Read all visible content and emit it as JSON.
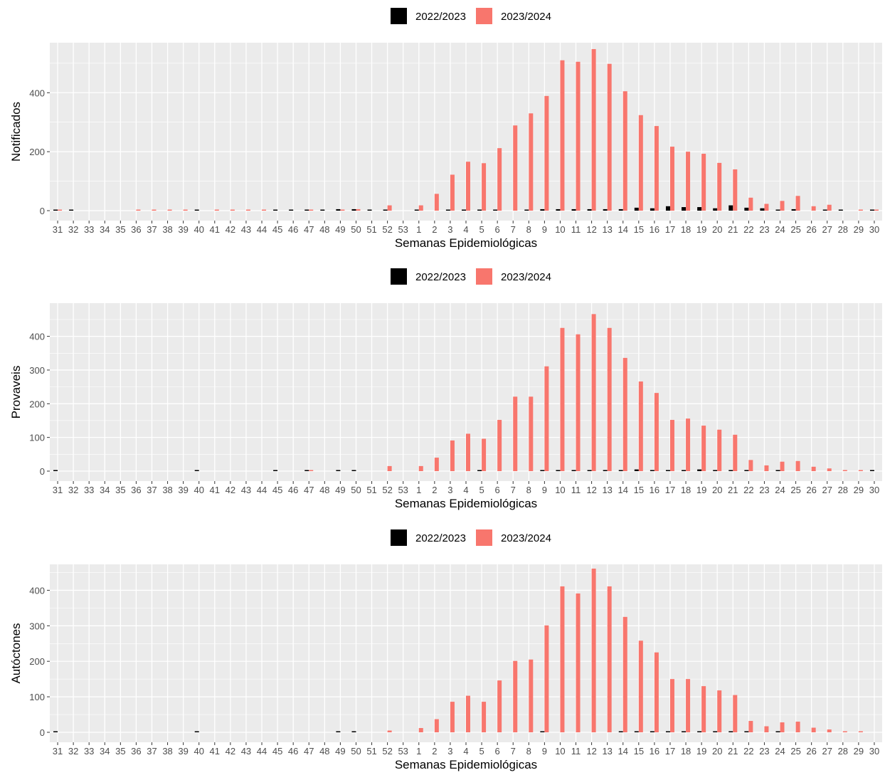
{
  "colors": {
    "s2022": "#000000",
    "s2023": "#F8766D",
    "panel": "#EBEBEB",
    "grid": "#FFFFFF",
    "tick": "#4D4D4D",
    "text": "#000000"
  },
  "chart_data": [
    {
      "type": "bar",
      "ylabel": "Notificados",
      "xlabel": "Semanas Epidemiológicas",
      "legend_position": "top",
      "grid": true,
      "ylim": [
        0,
        560
      ],
      "yticks": [
        0,
        200,
        400
      ],
      "categories": [
        "31",
        "32",
        "33",
        "34",
        "35",
        "36",
        "37",
        "38",
        "39",
        "40",
        "41",
        "42",
        "43",
        "44",
        "45",
        "46",
        "47",
        "48",
        "49",
        "50",
        "51",
        "52",
        "53",
        "1",
        "2",
        "3",
        "4",
        "5",
        "6",
        "7",
        "8",
        "9",
        "10",
        "11",
        "12",
        "13",
        "14",
        "15",
        "16",
        "17",
        "18",
        "19",
        "20",
        "21",
        "22",
        "23",
        "24",
        "25",
        "26",
        "27",
        "28",
        "29",
        "30"
      ],
      "series": [
        {
          "name": "2022/2023",
          "values": [
            3,
            2,
            0,
            0,
            0,
            0,
            0,
            0,
            0,
            2,
            0,
            0,
            0,
            0,
            2,
            2,
            2,
            2,
            5,
            5,
            2,
            2,
            0,
            2,
            0,
            2,
            3,
            2,
            2,
            0,
            2,
            5,
            5,
            5,
            5,
            5,
            5,
            10,
            8,
            15,
            12,
            12,
            8,
            18,
            10,
            8,
            3,
            5,
            0,
            2,
            3,
            0,
            2
          ]
        },
        {
          "name": "2023/2024",
          "values": [
            2,
            0,
            0,
            0,
            0,
            2,
            3,
            3,
            3,
            0,
            2,
            2,
            3,
            3,
            0,
            0,
            3,
            0,
            3,
            5,
            0,
            18,
            0,
            18,
            57,
            122,
            166,
            161,
            212,
            289,
            330,
            389,
            510,
            505,
            548,
            498,
            405,
            324,
            287,
            217,
            200,
            193,
            162,
            140,
            44,
            23,
            33,
            50,
            15,
            20,
            0,
            2,
            2
          ]
        }
      ]
    },
    {
      "type": "bar",
      "ylabel": "Provaveis",
      "xlabel": "Semanas Epidemiológicas",
      "legend_position": "top",
      "grid": true,
      "ylim": [
        0,
        490
      ],
      "yticks": [
        0,
        100,
        200,
        300,
        400
      ],
      "categories": [
        "31",
        "32",
        "33",
        "34",
        "35",
        "36",
        "37",
        "38",
        "39",
        "40",
        "41",
        "42",
        "43",
        "44",
        "45",
        "46",
        "47",
        "48",
        "49",
        "50",
        "51",
        "52",
        "53",
        "1",
        "2",
        "3",
        "4",
        "5",
        "6",
        "7",
        "8",
        "9",
        "10",
        "11",
        "12",
        "13",
        "14",
        "15",
        "16",
        "17",
        "18",
        "19",
        "20",
        "21",
        "22",
        "23",
        "24",
        "25",
        "26",
        "27",
        "28",
        "29",
        "30"
      ],
      "series": [
        {
          "name": "2022/2023",
          "values": [
            2,
            0,
            0,
            0,
            0,
            0,
            0,
            0,
            0,
            2,
            0,
            0,
            0,
            0,
            2,
            0,
            2,
            0,
            2,
            2,
            0,
            0,
            0,
            0,
            0,
            0,
            0,
            2,
            0,
            0,
            0,
            2,
            2,
            2,
            2,
            3,
            2,
            5,
            3,
            3,
            3,
            5,
            3,
            3,
            3,
            0,
            2,
            0,
            0,
            0,
            0,
            0,
            2
          ]
        },
        {
          "name": "2023/2024",
          "values": [
            0,
            0,
            0,
            0,
            0,
            0,
            0,
            0,
            0,
            0,
            0,
            0,
            0,
            0,
            0,
            0,
            2,
            0,
            0,
            0,
            0,
            15,
            0,
            15,
            40,
            91,
            111,
            96,
            152,
            221,
            221,
            311,
            425,
            406,
            466,
            425,
            336,
            266,
            232,
            152,
            156,
            135,
            123,
            108,
            33,
            17,
            28,
            30,
            13,
            8,
            3,
            3,
            0
          ]
        }
      ]
    },
    {
      "type": "bar",
      "ylabel": "Autóctones",
      "xlabel": "Semanas Epidemiológicas",
      "legend_position": "top",
      "grid": true,
      "ylim": [
        0,
        465
      ],
      "yticks": [
        0,
        100,
        200,
        300,
        400
      ],
      "categories": [
        "31",
        "32",
        "33",
        "34",
        "35",
        "36",
        "37",
        "38",
        "39",
        "40",
        "41",
        "42",
        "43",
        "44",
        "45",
        "46",
        "47",
        "48",
        "49",
        "50",
        "51",
        "52",
        "53",
        "1",
        "2",
        "3",
        "4",
        "5",
        "6",
        "7",
        "8",
        "9",
        "10",
        "11",
        "12",
        "13",
        "14",
        "15",
        "16",
        "17",
        "18",
        "19",
        "20",
        "21",
        "22",
        "23",
        "24",
        "25",
        "26",
        "27",
        "28",
        "29",
        "30"
      ],
      "series": [
        {
          "name": "2022/2023",
          "values": [
            2,
            0,
            0,
            0,
            0,
            0,
            0,
            0,
            0,
            2,
            0,
            0,
            0,
            0,
            0,
            0,
            0,
            0,
            2,
            2,
            0,
            0,
            0,
            0,
            0,
            0,
            0,
            0,
            0,
            0,
            0,
            2,
            0,
            0,
            0,
            0,
            2,
            3,
            2,
            2,
            3,
            2,
            3,
            3,
            2,
            0,
            2,
            0,
            0,
            0,
            0,
            0,
            0
          ]
        },
        {
          "name": "2023/2024",
          "values": [
            0,
            0,
            0,
            0,
            0,
            0,
            0,
            0,
            0,
            0,
            0,
            0,
            0,
            0,
            0,
            0,
            0,
            0,
            0,
            0,
            0,
            5,
            0,
            12,
            37,
            86,
            103,
            86,
            146,
            201,
            205,
            301,
            411,
            391,
            461,
            411,
            325,
            258,
            225,
            150,
            150,
            130,
            118,
            105,
            32,
            17,
            28,
            30,
            13,
            8,
            2,
            2,
            0
          ]
        }
      ]
    }
  ]
}
